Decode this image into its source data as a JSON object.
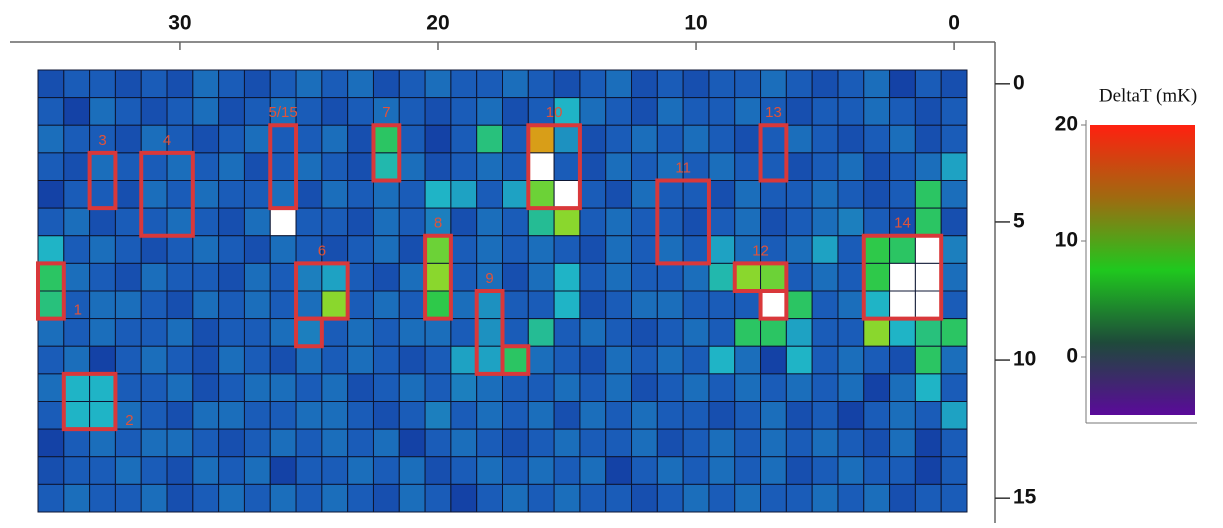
{
  "chart_data": {
    "type": "heatmap",
    "x": [
      35,
      34,
      33,
      32,
      31,
      30,
      29,
      28,
      27,
      26,
      25,
      24,
      23,
      22,
      21,
      20,
      19,
      18,
      17,
      16,
      15,
      14,
      13,
      12,
      11,
      10,
      9,
      8,
      7,
      6,
      5,
      4,
      3,
      2,
      1,
      0
    ],
    "y": [
      0,
      1,
      2,
      3,
      4,
      5,
      6,
      7,
      8,
      9,
      10,
      11,
      12,
      13,
      14,
      15
    ],
    "xlim": [
      35.5,
      -0.5
    ],
    "ylim": [
      -0.5,
      15.5
    ],
    "y_inverted": true,
    "xticks": [
      30,
      20,
      10,
      0
    ],
    "yticks": [
      0,
      5,
      10,
      15
    ],
    "values": [
      [
        -1,
        0,
        0,
        -1,
        0,
        -1,
        1,
        0,
        -1,
        0,
        1,
        0,
        1,
        -1,
        0,
        1,
        0,
        0,
        1,
        0,
        -1,
        0,
        1,
        -1,
        0,
        -1,
        0,
        0,
        1,
        0,
        -1,
        0,
        1,
        -2,
        0,
        -1
      ],
      [
        0,
        -2,
        1,
        0,
        -1,
        0,
        1,
        -1,
        0,
        1,
        0,
        -1,
        0,
        1,
        0,
        -1,
        0,
        1,
        -1,
        0,
        5,
        1,
        0,
        -1,
        1,
        0,
        0,
        1,
        0,
        -1,
        0,
        0,
        1,
        0,
        -1,
        0
      ],
      [
        1,
        0,
        0,
        -1,
        1,
        0,
        -1,
        0,
        1,
        0,
        0,
        1,
        -1,
        9,
        0,
        -2,
        0,
        8,
        0,
        17,
        3,
        -1,
        0,
        1,
        0,
        1,
        0,
        -1,
        0,
        1,
        0,
        -1,
        0,
        1,
        -1,
        0
      ],
      [
        0,
        -1,
        1,
        0,
        0,
        1,
        0,
        1,
        -1,
        0,
        1,
        0,
        -1,
        6,
        1,
        -1,
        0,
        1,
        0,
        null,
        0,
        -1,
        1,
        0,
        1,
        0,
        1,
        0,
        0,
        -1,
        0,
        1,
        -1,
        0,
        1,
        4
      ],
      [
        -2,
        0,
        0,
        -1,
        1,
        0,
        1,
        0,
        0,
        1,
        -1,
        1,
        0,
        1,
        0,
        5,
        4,
        0,
        4,
        12,
        null,
        0,
        -1,
        1,
        0,
        0,
        -1,
        1,
        0,
        0,
        1,
        0,
        -1,
        0,
        9,
        1
      ],
      [
        0,
        1,
        -1,
        0,
        0,
        1,
        0,
        -1,
        1,
        null,
        0,
        0,
        -1,
        1,
        0,
        2,
        -1,
        1,
        0,
        7,
        13,
        0,
        1,
        0,
        0,
        -1,
        0,
        1,
        -1,
        0,
        1,
        2,
        0,
        -1,
        9,
        -1
      ],
      [
        5,
        0,
        1,
        0,
        -1,
        0,
        1,
        0,
        -1,
        1,
        0,
        -1,
        0,
        1,
        -1,
        12,
        0,
        1,
        0,
        1,
        0,
        -1,
        1,
        0,
        1,
        0,
        4,
        1,
        0,
        1,
        4,
        0,
        10,
        9,
        null,
        2
      ],
      [
        9,
        1,
        0,
        -1,
        1,
        0,
        0,
        -1,
        1,
        0,
        2,
        4,
        0,
        -1,
        1,
        13,
        0,
        1,
        -1,
        1,
        5,
        0,
        1,
        0,
        0,
        1,
        6,
        13,
        12,
        0,
        1,
        0,
        10,
        null,
        null,
        1
      ],
      [
        8,
        0,
        1,
        1,
        0,
        -1,
        1,
        0,
        1,
        0,
        1,
        13,
        0,
        1,
        0,
        10,
        1,
        3,
        0,
        0,
        5,
        -1,
        0,
        1,
        1,
        0,
        0,
        0,
        null,
        9,
        0,
        1,
        5,
        null,
        null,
        0
      ],
      [
        1,
        0,
        1,
        0,
        0,
        1,
        -1,
        0,
        0,
        1,
        2,
        0,
        1,
        0,
        1,
        1,
        0,
        3,
        0,
        7,
        0,
        1,
        0,
        -1,
        0,
        1,
        0,
        9,
        9,
        4,
        0,
        0,
        13,
        5,
        8,
        9
      ],
      [
        0,
        1,
        -2,
        0,
        1,
        0,
        -1,
        1,
        0,
        -1,
        1,
        0,
        1,
        0,
        -1,
        0,
        4,
        4,
        9,
        1,
        0,
        -1,
        1,
        0,
        1,
        0,
        5,
        1,
        -2,
        5,
        0,
        1,
        0,
        -1,
        9,
        1
      ],
      [
        1,
        5,
        5,
        0,
        0,
        1,
        -1,
        0,
        1,
        1,
        0,
        1,
        -1,
        0,
        1,
        0,
        2,
        1,
        0,
        0,
        1,
        0,
        1,
        -1,
        0,
        1,
        0,
        1,
        0,
        1,
        0,
        1,
        -2,
        1,
        5,
        0
      ],
      [
        0,
        5,
        5,
        1,
        0,
        -1,
        1,
        1,
        0,
        0,
        1,
        1,
        0,
        -1,
        0,
        2,
        0,
        1,
        0,
        1,
        -1,
        1,
        0,
        1,
        0,
        0,
        -1,
        0,
        1,
        -1,
        0,
        -2,
        0,
        1,
        0,
        4
      ],
      [
        -2,
        0,
        1,
        0,
        1,
        1,
        0,
        -1,
        0,
        1,
        0,
        1,
        0,
        1,
        -2,
        0,
        1,
        0,
        -1,
        0,
        1,
        0,
        0,
        1,
        -1,
        0,
        1,
        0,
        1,
        0,
        1,
        0,
        -1,
        1,
        -2,
        0
      ],
      [
        -1,
        0,
        0,
        1,
        0,
        -1,
        1,
        0,
        1,
        -2,
        0,
        0,
        1,
        0,
        1,
        -1,
        0,
        1,
        0,
        1,
        0,
        1,
        -2,
        0,
        1,
        0,
        1,
        0,
        1,
        -1,
        0,
        1,
        0,
        0,
        -2,
        0
      ],
      [
        0,
        1,
        0,
        0,
        1,
        -1,
        0,
        1,
        0,
        1,
        0,
        1,
        0,
        -1,
        1,
        0,
        -2,
        0,
        1,
        0,
        1,
        0,
        0,
        -1,
        0,
        1,
        0,
        1,
        0,
        0,
        1,
        0,
        1,
        -1,
        0,
        0
      ]
    ],
    "missing_color": "#ffffff",
    "colormap": [
      "#0b1a8c",
      "#1a5cb8",
      "#1fb4c6",
      "#2ec94a",
      "#c8e01a",
      "#f03c14"
    ],
    "clim": [
      -5,
      20
    ],
    "colorbar_title": "DeltaT (mK)",
    "colorbar_ticks": [
      0,
      10,
      20
    ],
    "colorbar_colors": [
      "#5a0a9a",
      "#1e4a3a",
      "#1fc81e",
      "#a06a10",
      "#ff2010"
    ],
    "box_color": "#d9383a",
    "boxes": [
      {
        "label": "1",
        "x": [
          35,
          35
        ],
        "y": [
          7,
          8
        ],
        "label_side": "right"
      },
      {
        "label": "2",
        "x": [
          34,
          33
        ],
        "y": [
          11,
          12
        ],
        "label_side": "right"
      },
      {
        "label": "3",
        "x": [
          33,
          33
        ],
        "y": [
          3,
          4
        ],
        "label_side": "top"
      },
      {
        "label": "4",
        "x": [
          31,
          30
        ],
        "y": [
          3,
          5
        ],
        "label_side": "top"
      },
      {
        "label": "5/15",
        "x": [
          26,
          26
        ],
        "y": [
          2,
          4
        ],
        "label_side": "top"
      },
      {
        "label": "6",
        "x": [
          25,
          24
        ],
        "y": [
          7,
          8
        ],
        "label_side": "top"
      },
      {
        "x": [
          25,
          25
        ],
        "y": [
          9,
          9
        ]
      },
      {
        "label": "7",
        "x": [
          22,
          22
        ],
        "y": [
          2,
          3
        ],
        "label_side": "top"
      },
      {
        "label": "8",
        "x": [
          20,
          20
        ],
        "y": [
          6,
          8
        ],
        "label_side": "top"
      },
      {
        "label": "9",
        "x": [
          18,
          18
        ],
        "y": [
          8,
          10
        ],
        "label_side": "top"
      },
      {
        "x": [
          17,
          17
        ],
        "y": [
          10,
          10
        ]
      },
      {
        "label": "10",
        "x": [
          16,
          15
        ],
        "y": [
          2,
          4
        ],
        "label_side": "top"
      },
      {
        "label": "11",
        "x": [
          11,
          10
        ],
        "y": [
          4,
          6
        ],
        "label_side": "top"
      },
      {
        "label": "12",
        "x": [
          8,
          7
        ],
        "y": [
          7,
          7
        ],
        "label_side": "top"
      },
      {
        "x": [
          7,
          7
        ],
        "y": [
          8,
          8
        ]
      },
      {
        "label": "13",
        "x": [
          7,
          7
        ],
        "y": [
          2,
          3
        ],
        "label_side": "top"
      },
      {
        "label": "14",
        "x": [
          3,
          1
        ],
        "y": [
          6,
          8
        ],
        "label_side": "top"
      }
    ]
  }
}
